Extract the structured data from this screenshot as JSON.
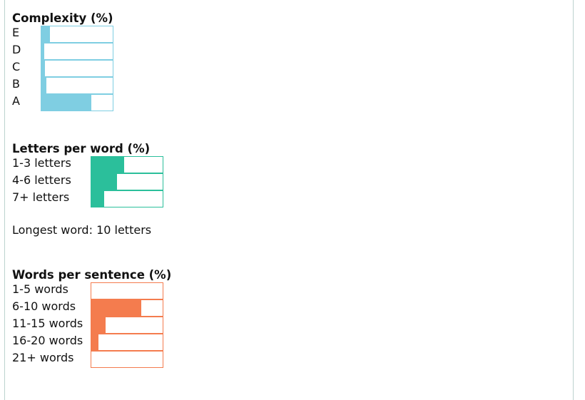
{
  "colors": {
    "complexity": "#7fcee2",
    "letters": "#2bbf9b",
    "words": "#f47c4e"
  },
  "chart_data": [
    {
      "type": "bar",
      "orientation": "horizontal",
      "title": "Complexity (%)",
      "categories": [
        "E",
        "D",
        "C",
        "B",
        "A"
      ],
      "values": [
        12,
        4,
        5,
        7,
        70
      ],
      "xlim": [
        0,
        100
      ]
    },
    {
      "type": "bar",
      "orientation": "horizontal",
      "title": "Letters per word (%)",
      "categories": [
        "1-3 letters",
        "4-6 letters",
        "7+ letters"
      ],
      "values": [
        46,
        36,
        18
      ],
      "xlim": [
        0,
        100
      ]
    },
    {
      "type": "bar",
      "orientation": "horizontal",
      "title": "Words per sentence (%)",
      "categories": [
        "1-5 words",
        "6-10 words",
        "11-15 words",
        "16-20 words",
        "21+ words"
      ],
      "values": [
        0,
        70,
        20,
        10,
        0
      ],
      "xlim": [
        0,
        100
      ]
    }
  ],
  "stats": {
    "longest_word": "Longest word: 10 letters"
  }
}
